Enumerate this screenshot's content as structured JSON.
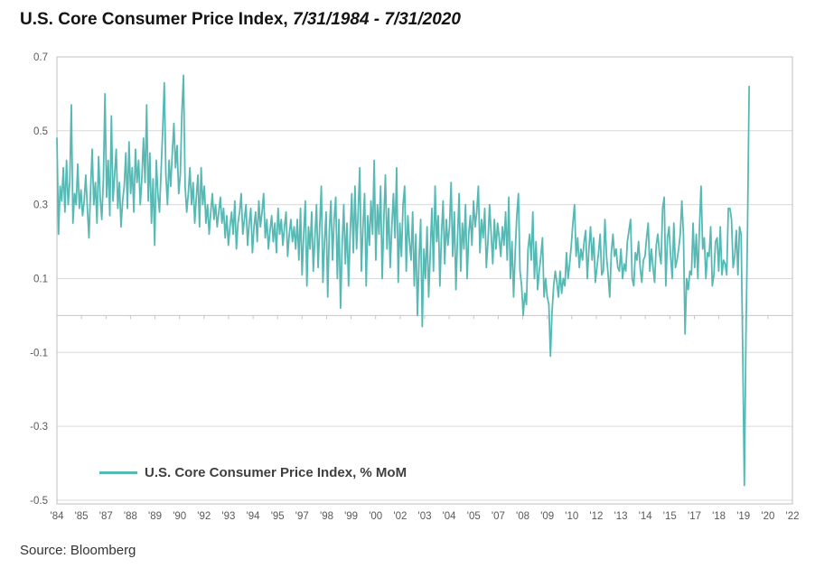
{
  "title": {
    "main": "U.S. Core Consumer Price Index, ",
    "dates": "7/31/1984 - 7/31/2020"
  },
  "legend": {
    "label": "U.S. Core Consumer Price Index, % MoM"
  },
  "source": "Source: Bloomberg",
  "colors": {
    "line": "#57b9b4",
    "grid": "#d9d9d9",
    "zero_axis": "#c6c6c6",
    "border": "#bfbfbf",
    "tick_text": "#595959",
    "title_text": "#141414",
    "legend_text": "#3f3f3f",
    "source_text": "#333333"
  },
  "chart_data": {
    "type": "line",
    "title": "U.S. Core Consumer Price Index, 7/31/1984 - 7/31/2020",
    "series_name": "U.S. Core Consumer Price Index, % MoM",
    "unit": "% MoM",
    "frequency": "monthly",
    "start_month": "1984-07",
    "end_month": "2020-07",
    "line_color": "#57b9b4",
    "grid": true,
    "legend_position": "bottom-left-inside",
    "ylim": [
      -0.51,
      0.7
    ],
    "y_tick_values": [
      0.7,
      0.5,
      0.3,
      0.1,
      -0.1,
      -0.3,
      -0.5
    ],
    "y_tick_labels": [
      "0.7",
      "0.5",
      "0.3",
      "0.1",
      "-0.1",
      "-0.3",
      "-0.5"
    ],
    "x_axis_span_months": 459,
    "x_tick_labels": [
      "'84",
      "'85",
      "'87",
      "'88",
      "'89",
      "'90",
      "'92",
      "'93",
      "'94",
      "'95",
      "'97",
      "'98",
      "'99",
      "'00",
      "'02",
      "'03",
      "'04",
      "'05",
      "'07",
      "'08",
      "'09",
      "'10",
      "'12",
      "'13",
      "'14",
      "'15",
      "'17",
      "'18",
      "'19",
      "'20",
      "'22"
    ],
    "values": [
      0.48,
      0.22,
      0.35,
      0.31,
      0.4,
      0.28,
      0.42,
      0.3,
      0.36,
      0.57,
      0.25,
      0.33,
      0.3,
      0.41,
      0.29,
      0.34,
      0.27,
      0.31,
      0.38,
      0.29,
      0.21,
      0.34,
      0.45,
      0.3,
      0.36,
      0.25,
      0.43,
      0.32,
      0.26,
      0.37,
      0.6,
      0.32,
      0.42,
      0.27,
      0.54,
      0.31,
      0.38,
      0.45,
      0.29,
      0.36,
      0.24,
      0.31,
      0.35,
      0.44,
      0.29,
      0.47,
      0.33,
      0.4,
      0.28,
      0.45,
      0.36,
      0.42,
      0.3,
      0.37,
      0.48,
      0.36,
      0.57,
      0.31,
      0.44,
      0.25,
      0.37,
      0.19,
      0.42,
      0.33,
      0.28,
      0.39,
      0.5,
      0.63,
      0.38,
      0.3,
      0.42,
      0.35,
      0.44,
      0.52,
      0.4,
      0.46,
      0.33,
      0.38,
      0.55,
      0.65,
      0.35,
      0.28,
      0.33,
      0.4,
      0.3,
      0.36,
      0.25,
      0.32,
      0.38,
      0.24,
      0.4,
      0.3,
      0.35,
      0.25,
      0.3,
      0.22,
      0.28,
      0.33,
      0.26,
      0.3,
      0.24,
      0.28,
      0.32,
      0.25,
      0.29,
      0.21,
      0.27,
      0.19,
      0.24,
      0.28,
      0.22,
      0.31,
      0.18,
      0.25,
      0.28,
      0.33,
      0.22,
      0.26,
      0.3,
      0.19,
      0.25,
      0.29,
      0.17,
      0.24,
      0.28,
      0.2,
      0.31,
      0.24,
      0.28,
      0.33,
      0.21,
      0.26,
      0.18,
      0.23,
      0.27,
      0.2,
      0.25,
      0.17,
      0.29,
      0.22,
      0.26,
      0.19,
      0.24,
      0.28,
      0.16,
      0.22,
      0.26,
      0.2,
      0.24,
      0.18,
      0.26,
      0.15,
      0.29,
      0.11,
      0.22,
      0.31,
      0.08,
      0.24,
      0.18,
      0.28,
      0.12,
      0.21,
      0.3,
      0.13,
      0.24,
      0.35,
      0.09,
      0.2,
      0.28,
      0.05,
      0.23,
      0.31,
      0.15,
      0.26,
      0.32,
      0.1,
      0.26,
      0.02,
      0.19,
      0.3,
      0.14,
      0.25,
      0.08,
      0.22,
      0.33,
      0.17,
      0.35,
      0.18,
      0.28,
      0.4,
      0.12,
      0.24,
      0.33,
      0.08,
      0.27,
      0.19,
      0.31,
      0.22,
      0.42,
      0.15,
      0.3,
      0.22,
      0.35,
      0.1,
      0.26,
      0.38,
      0.18,
      0.29,
      0.13,
      0.24,
      0.33,
      0.21,
      0.4,
      0.09,
      0.25,
      0.16,
      0.3,
      0.35,
      0.12,
      0.27,
      0.2,
      0.15,
      0.28,
      0.08,
      0.22,
      0.0,
      0.15,
      0.26,
      -0.03,
      0.18,
      0.1,
      0.24,
      0.05,
      0.17,
      0.29,
      0.12,
      0.35,
      0.2,
      0.27,
      0.08,
      0.22,
      0.31,
      0.14,
      0.26,
      0.19,
      0.24,
      0.36,
      0.16,
      0.28,
      0.07,
      0.21,
      0.33,
      0.12,
      0.25,
      0.18,
      0.3,
      0.1,
      0.22,
      0.27,
      0.19,
      0.31,
      0.24,
      0.28,
      0.35,
      0.17,
      0.26,
      0.21,
      0.29,
      0.13,
      0.2,
      0.3,
      0.22,
      0.14,
      0.26,
      0.18,
      0.25,
      0.21,
      0.16,
      0.24,
      0.19,
      0.28,
      0.15,
      0.32,
      0.1,
      0.2,
      0.05,
      0.17,
      0.27,
      0.33,
      0.12,
      0.08,
      0.0,
      0.06,
      0.03,
      0.18,
      0.22,
      0.15,
      0.28,
      0.1,
      0.2,
      0.07,
      0.12,
      0.16,
      0.21,
      0.05,
      0.1,
      0.05,
      0.03,
      -0.11,
      0.01,
      0.08,
      0.12,
      0.09,
      0.05,
      0.12,
      0.06,
      0.1,
      0.08,
      0.17,
      0.1,
      0.14,
      0.19,
      0.25,
      0.3,
      0.16,
      0.21,
      0.13,
      0.18,
      0.15,
      0.2,
      0.23,
      0.1,
      0.18,
      0.24,
      0.15,
      0.21,
      0.09,
      0.13,
      0.17,
      0.22,
      0.11,
      0.12,
      0.26,
      0.16,
      0.11,
      0.05,
      0.17,
      0.22,
      0.16,
      0.18,
      0.13,
      0.12,
      0.18,
      0.1,
      0.14,
      0.12,
      0.2,
      0.23,
      0.26,
      0.1,
      0.08,
      0.17,
      0.15,
      0.2,
      0.13,
      0.09,
      0.15,
      0.16,
      0.21,
      0.25,
      0.12,
      0.18,
      0.13,
      0.09,
      0.19,
      0.22,
      0.17,
      0.14,
      0.29,
      0.32,
      0.08,
      0.21,
      0.24,
      0.16,
      0.1,
      0.25,
      0.13,
      0.15,
      0.18,
      0.22,
      0.31,
      0.22,
      -0.05,
      0.1,
      0.07,
      0.12,
      0.11,
      0.25,
      0.13,
      0.22,
      0.1,
      0.24,
      0.35,
      0.18,
      0.21,
      0.1,
      0.17,
      0.16,
      0.24,
      0.08,
      0.11,
      0.2,
      0.21,
      0.12,
      0.24,
      0.11,
      0.15,
      0.14,
      0.11,
      0.29,
      0.29,
      0.26,
      0.13,
      0.16,
      0.23,
      0.11,
      0.24,
      0.22,
      -0.1,
      -0.46,
      -0.06,
      0.24,
      0.62
    ]
  }
}
